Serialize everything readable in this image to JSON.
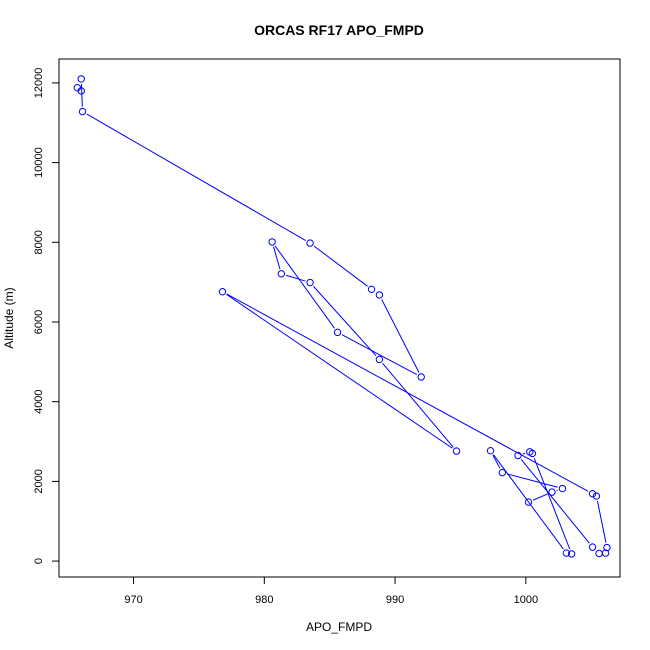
{
  "chart_data": {
    "type": "line",
    "title": "ORCAS RF17 APO_FMPD",
    "xlabel": "APO_FMPD",
    "ylabel": "Altitude (m)",
    "xlim": [
      964.3,
      1007.2
    ],
    "ylim": [
      -400,
      12600
    ],
    "x_ticks": [
      970,
      980,
      990,
      1000
    ],
    "y_ticks": [
      0,
      2000,
      4000,
      6000,
      8000,
      10000,
      12000
    ],
    "grid": false,
    "line_color": "#0000ff",
    "series": [
      {
        "points": [
          [
            966.0,
            11800
          ],
          [
            965.7,
            11880
          ],
          [
            966.0,
            12100
          ],
          [
            966.1,
            11280
          ],
          [
            983.5,
            7980
          ],
          [
            988.2,
            6820
          ],
          [
            988.8,
            6680
          ],
          [
            992.0,
            4620
          ],
          [
            985.6,
            5740
          ],
          [
            980.6,
            8010
          ],
          [
            981.3,
            7210
          ],
          [
            983.5,
            6990
          ],
          [
            988.8,
            5060
          ],
          [
            994.7,
            2760
          ],
          [
            976.8,
            6760
          ],
          [
            1005.1,
            1690
          ],
          [
            1005.4,
            1630
          ],
          [
            1006.2,
            340
          ],
          [
            1006.1,
            200
          ],
          [
            1005.6,
            190
          ],
          [
            1005.1,
            350
          ],
          [
            999.4,
            2650
          ],
          [
            1000.3,
            2740
          ],
          [
            1000.5,
            2700
          ],
          [
            1003.5,
            180
          ],
          [
            1003.1,
            200
          ],
          [
            997.3,
            2770
          ],
          [
            998.2,
            2220
          ],
          [
            1002.8,
            1820
          ],
          [
            1002.0,
            1730
          ],
          [
            1000.2,
            1480
          ]
        ]
      }
    ]
  }
}
